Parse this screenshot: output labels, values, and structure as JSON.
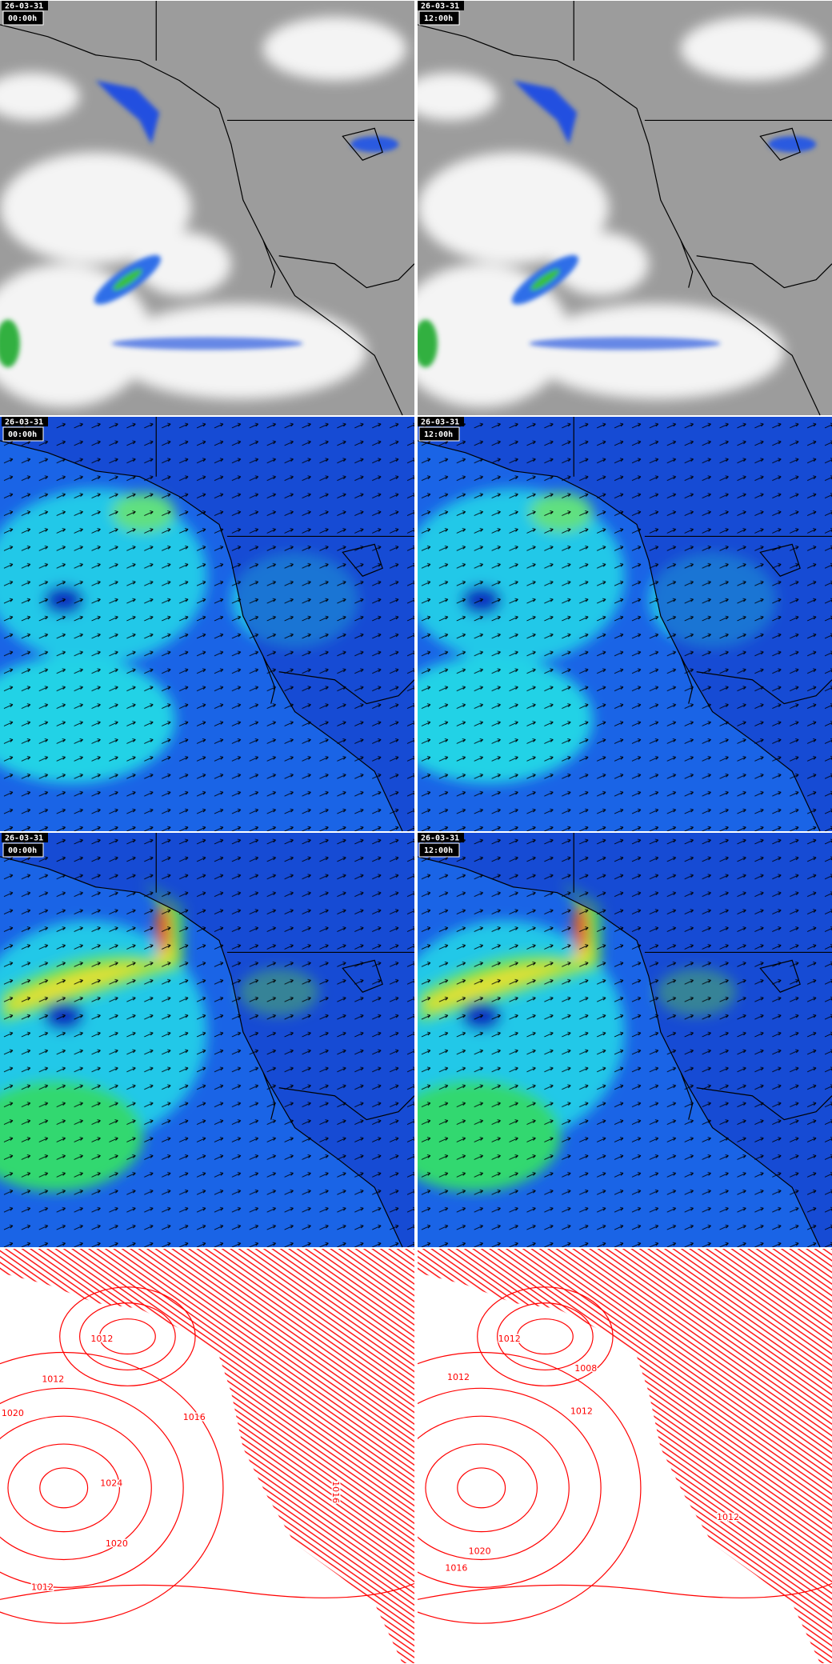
{
  "panels": [
    [
      {
        "date": "26-03-31",
        "time": "00:00h"
      },
      {
        "date": "26-03-31",
        "time": "12:00h"
      }
    ],
    [
      {
        "date": "26-03-31",
        "time": "00:00h"
      },
      {
        "date": "26-03-31",
        "time": "12:00h"
      }
    ],
    [
      {
        "date": "26-03-31",
        "time": "00:00h"
      },
      {
        "date": "26-03-31",
        "time": "12:00h"
      }
    ],
    [
      {
        "date": null,
        "time": null
      },
      {
        "date": null,
        "time": null
      }
    ]
  ],
  "pressure_labels": [
    [
      "1012",
      "1012",
      "1020",
      "1016",
      "1024",
      "1020",
      "1012",
      "1016"
    ],
    [
      "1012",
      "1012",
      "1008",
      "1012",
      "1020",
      "1016",
      "1012"
    ]
  ]
}
